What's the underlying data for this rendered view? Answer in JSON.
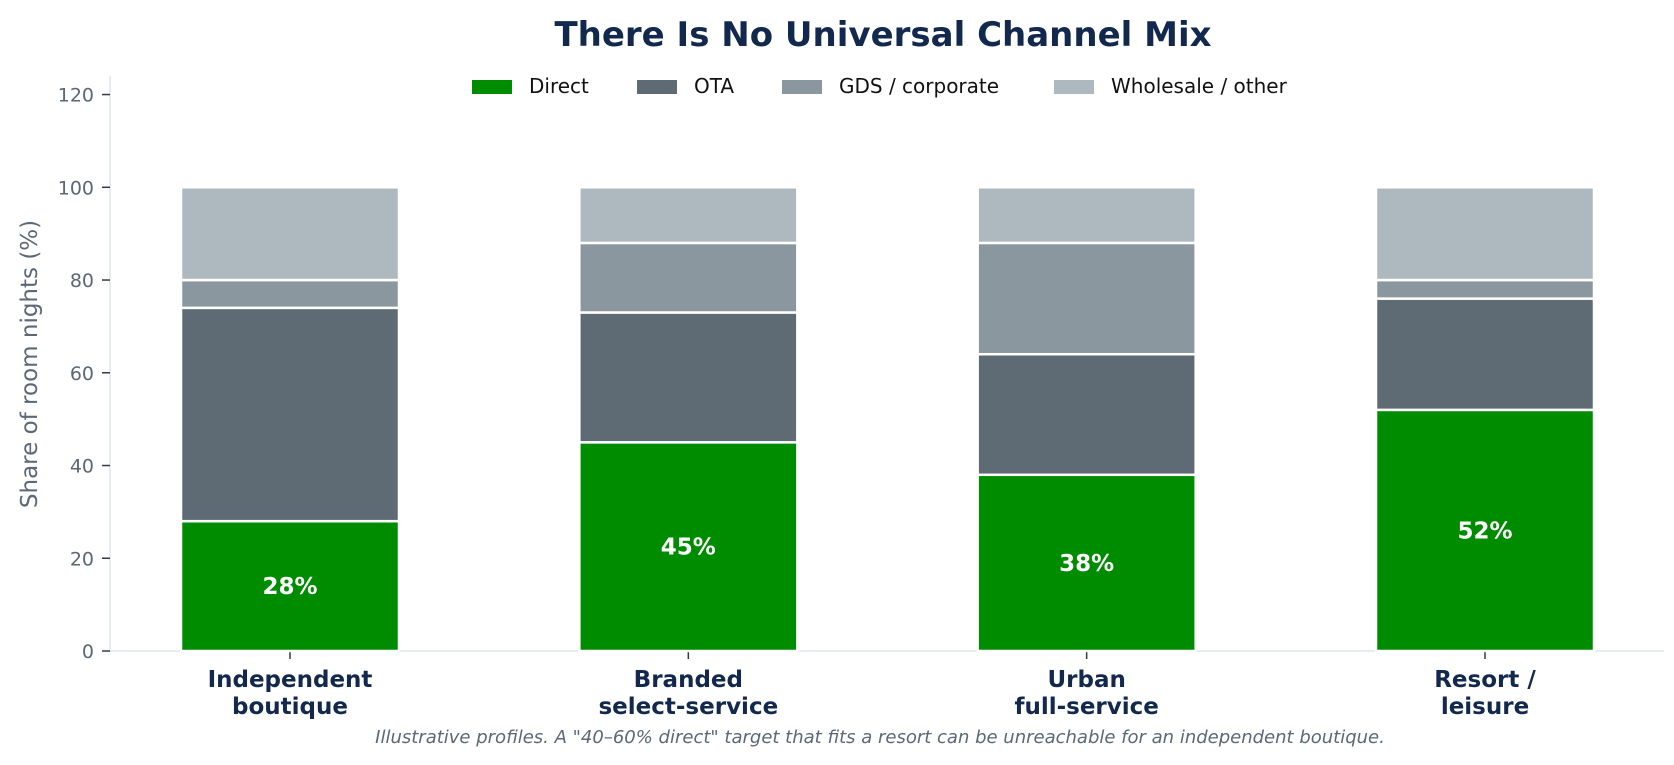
{
  "chart_data": {
    "type": "bar",
    "stacked": true,
    "title": "There Is No Universal Channel Mix",
    "ylabel": "Share of room nights (%)",
    "xlabel": "",
    "ylim": [
      0,
      124
    ],
    "yticks": [
      0,
      20,
      40,
      60,
      80,
      100,
      120
    ],
    "grid": false,
    "legend_position": "top-center",
    "categories": [
      [
        "Independent",
        "boutique"
      ],
      [
        "Branded",
        "select-service"
      ],
      [
        "Urban",
        "full-service"
      ],
      [
        "Resort /",
        "leisure"
      ]
    ],
    "series": [
      {
        "name": "Direct",
        "color": "#008c00",
        "values": [
          28,
          45,
          38,
          52
        ]
      },
      {
        "name": "OTA",
        "color": "#5e6b75",
        "values": [
          46,
          28,
          26,
          24
        ]
      },
      {
        "name": "GDS / corporate",
        "color": "#8a979f",
        "values": [
          6,
          15,
          24,
          4
        ]
      },
      {
        "name": "Wholesale / other",
        "color": "#aeb8bf",
        "values": [
          20,
          12,
          12,
          20
        ]
      }
    ],
    "data_labels": [
      "28%",
      "45%",
      "38%",
      "52%"
    ],
    "caption": "Illustrative profiles. A \"40–60% direct\" target that fits a resort can be unreachable for an independent boutique."
  }
}
